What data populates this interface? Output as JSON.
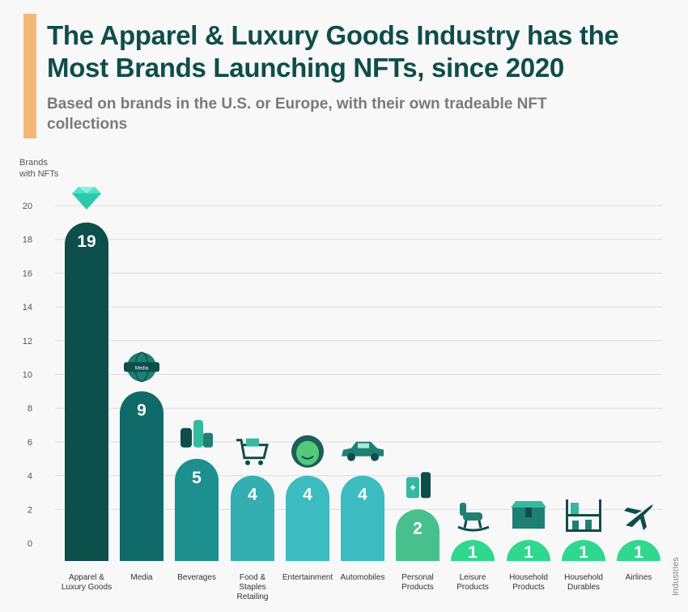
{
  "header": {
    "title": "The Apparel & Luxury Goods Industry has the Most Brands Launching NFTs, since 2020",
    "subtitle": "Based on brands in the U.S. or Europe, with their own tradeable NFT collections"
  },
  "colors": {
    "accent": "#f2b774",
    "title": "#0f4d4a",
    "subtitle": "#7a7a7a",
    "grid": "#dcdcdc",
    "axis_text": "#555555"
  },
  "chart_data": {
    "type": "bar",
    "ylabel": "Brands with NFTs",
    "xlabel": "Industries",
    "ylim": [
      0,
      20
    ],
    "yticks": [
      0,
      2,
      4,
      6,
      8,
      10,
      12,
      14,
      16,
      18,
      20
    ],
    "grid": true,
    "categories": [
      [
        "Apparel &",
        "Luxury Goods"
      ],
      [
        "Media"
      ],
      [
        "Beverages"
      ],
      [
        "Food &",
        "Staples",
        "Retailing"
      ],
      [
        "Entertainment"
      ],
      [
        "Automobiles"
      ],
      [
        "Personal",
        "Products"
      ],
      [
        "Leisure",
        "Products"
      ],
      [
        "Household",
        "Products"
      ],
      [
        "Household",
        "Durables"
      ],
      [
        "Airlines"
      ]
    ],
    "values": [
      19,
      9,
      5,
      4,
      4,
      4,
      2,
      1,
      1,
      1,
      1
    ],
    "bar_colors": [
      "#0d4f4b",
      "#106a6a",
      "#1e8f8f",
      "#33aeb1",
      "#3cbcc0",
      "#3cbcc0",
      "#47c08d",
      "#2fd88e",
      "#2fd88e",
      "#2fd88e",
      "#2fd88e"
    ],
    "icons": [
      "diamond-icon",
      "media-globe-icon",
      "bottles-icon",
      "shopping-cart-icon",
      "mask-icon",
      "car-icon",
      "lotion-icon",
      "rocking-horse-icon",
      "box-icon",
      "shelf-icon",
      "airplane-icon"
    ],
    "icon_texts": [
      "",
      "Media",
      "",
      "",
      "",
      "",
      "",
      "",
      "",
      "",
      ""
    ]
  }
}
